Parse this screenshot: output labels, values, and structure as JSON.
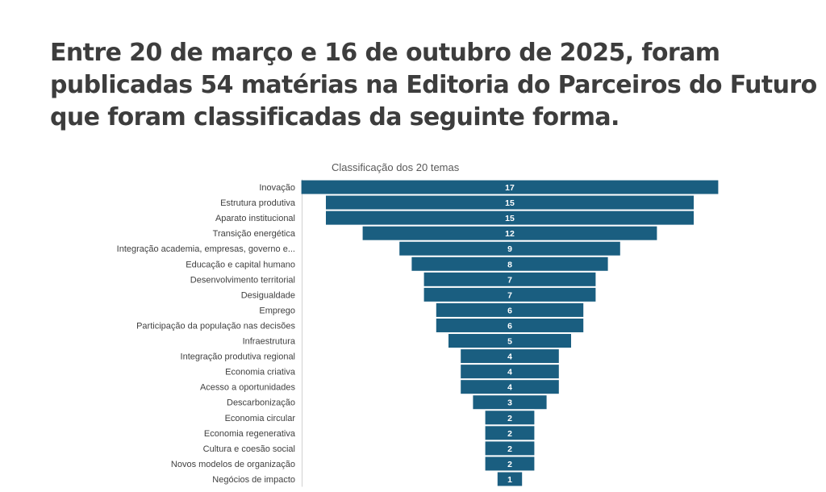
{
  "headline": "Entre 20 de março e 16 de outubro de 2025, foram publicadas 54 matérias na Editoria do Parceiros do Futuro que foram classificadas da seguinte forma.",
  "colors": {
    "bar": "#1a5e80",
    "axis": "#d0d0d0",
    "headline": "#3d3d3d"
  },
  "chart_data": {
    "type": "bar",
    "subtype": "funnel",
    "title": "Classificação dos 20 temas",
    "categories": [
      "Inovação",
      "Estrutura produtiva",
      "Aparato institucional",
      "Transição energética",
      "Integração academia, empresas, governo e...",
      "Educação e capital humano",
      "Desenvolvimento territorial",
      "Desigualdade",
      "Emprego",
      "Participação da população nas decisões",
      "Infraestrutura",
      "Integração produtiva regional",
      "Economia criativa",
      "Acesso a oportunidades",
      "Descarbonização",
      "Economia circular",
      "Economia regenerativa",
      "Cultura e coesão social",
      "Novos modelos de organização",
      "Negócios de impacto"
    ],
    "values": [
      17,
      15,
      15,
      12,
      9,
      8,
      7,
      7,
      6,
      6,
      5,
      4,
      4,
      4,
      3,
      2,
      2,
      2,
      2,
      1
    ],
    "orientation": "horizontal",
    "data_labels": true,
    "legend": "none",
    "grid": false
  }
}
